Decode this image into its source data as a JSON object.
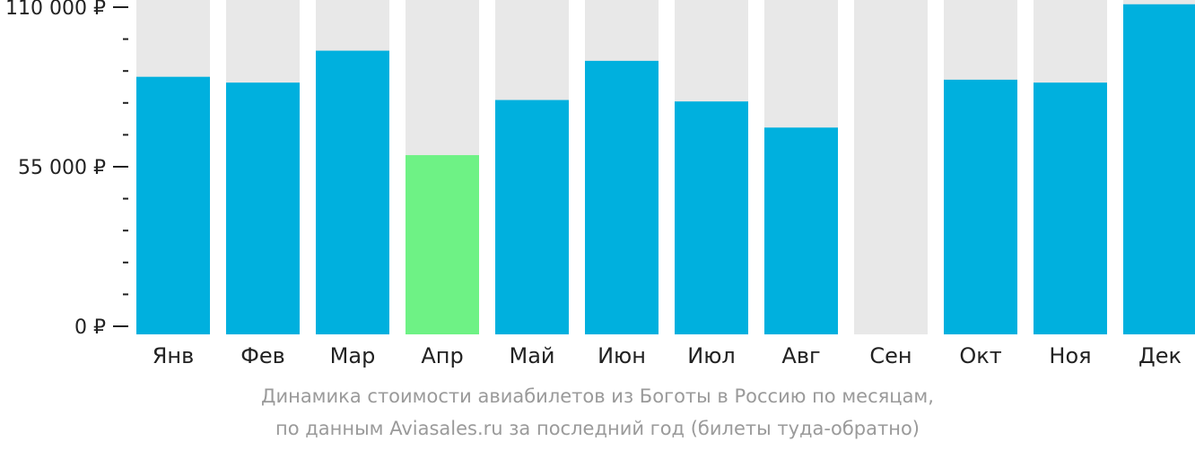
{
  "chart_data": {
    "type": "bar",
    "categories": [
      "Янв",
      "Фев",
      "Мар",
      "Апр",
      "Май",
      "Июн",
      "Июл",
      "Авг",
      "Сен",
      "Окт",
      "Ноя",
      "Дек"
    ],
    "values": [
      86000,
      84000,
      95000,
      59000,
      78000,
      91500,
      77500,
      68500,
      0,
      85000,
      84000,
      111000
    ],
    "highlight_index": 3,
    "ylim": [
      0,
      115000
    ],
    "yticks": [
      {
        "value": 0,
        "label": "0 ₽"
      },
      {
        "value": 55000,
        "label": "55 000 ₽"
      },
      {
        "value": 110000,
        "label": "110 000 ₽"
      }
    ],
    "minor_tick_step": 11000,
    "colors": {
      "bar": "#00b0de",
      "highlight": "#6ef285",
      "background_bar": "#e8e8e8",
      "axis": "#222222"
    },
    "caption_line1": "Динамика стоимости авиабилетов из Боготы в Россию по месяцам,",
    "caption_line2": "по данным Aviasales.ru за последний год (билеты туда-обратно)"
  }
}
